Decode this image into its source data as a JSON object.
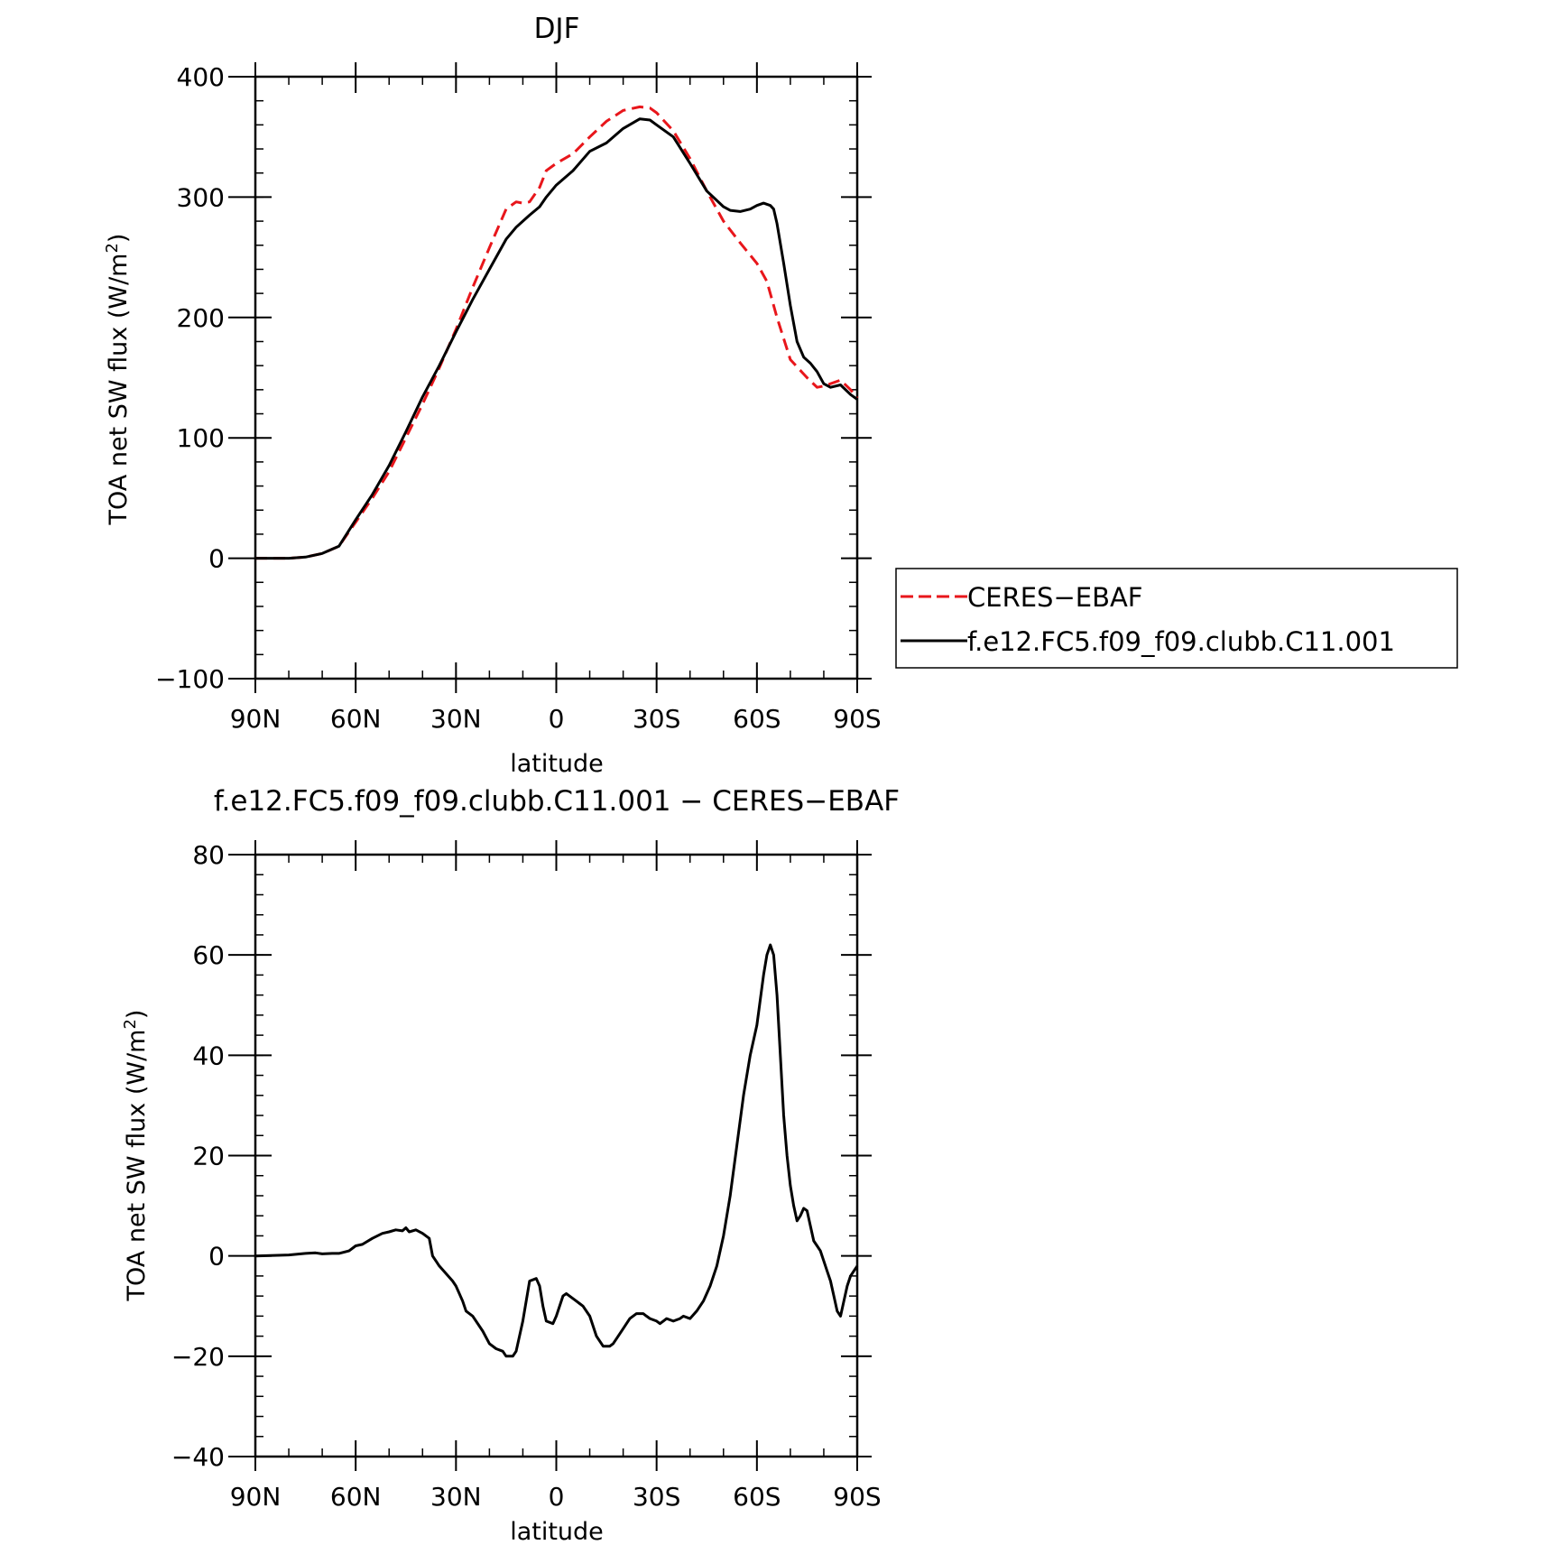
{
  "colors": {
    "obs": "#e8161b",
    "model": "#000000"
  },
  "charts": [
    {
      "title": "DJF",
      "xlabel": "latitude",
      "ylabel": "TOA net SW flux (W/m",
      "ylabel_sup": "2",
      "ylabel_close": ")",
      "xticks": [
        {
          "v": 90,
          "label": "90N"
        },
        {
          "v": 60,
          "label": "60N"
        },
        {
          "v": 30,
          "label": "30N"
        },
        {
          "v": 0,
          "label": "0"
        },
        {
          "v": -30,
          "label": "30S"
        },
        {
          "v": -60,
          "label": "60S"
        },
        {
          "v": -90,
          "label": "90S"
        }
      ],
      "yticks": [
        {
          "v": 400,
          "label": "400"
        },
        {
          "v": 300,
          "label": "300"
        },
        {
          "v": 200,
          "label": "200"
        },
        {
          "v": 100,
          "label": "100"
        },
        {
          "v": 0,
          "label": "0"
        },
        {
          "v": -100,
          "label": "−100"
        }
      ]
    },
    {
      "title": "f.e12.FC5.f09_f09.clubb.C11.001 − CERES−EBAF",
      "xlabel": "latitude",
      "ylabel": "TOA net SW flux (W/m",
      "ylabel_sup": "2",
      "ylabel_close": ")",
      "xticks": [
        {
          "v": 90,
          "label": "90N"
        },
        {
          "v": 60,
          "label": "60N"
        },
        {
          "v": 30,
          "label": "30N"
        },
        {
          "v": 0,
          "label": "0"
        },
        {
          "v": -30,
          "label": "30S"
        },
        {
          "v": -60,
          "label": "60S"
        },
        {
          "v": -90,
          "label": "90S"
        }
      ],
      "yticks": [
        {
          "v": 80,
          "label": "80"
        },
        {
          "v": 60,
          "label": "60"
        },
        {
          "v": 40,
          "label": "40"
        },
        {
          "v": 20,
          "label": "20"
        },
        {
          "v": 0,
          "label": "0"
        },
        {
          "v": -20,
          "label": "−20"
        },
        {
          "v": -40,
          "label": "−40"
        }
      ]
    }
  ],
  "legend": [
    {
      "name": "CERES−EBAF",
      "style": "dashed",
      "color": "#e8161b"
    },
    {
      "name": "f.e12.FC5.f09_f09.clubb.C11.001",
      "style": "solid",
      "color": "#000000"
    }
  ],
  "chart_data": [
    {
      "type": "line",
      "title": "DJF",
      "xlabel": "latitude",
      "ylabel": "TOA net SW flux (W/m2)",
      "xlim": [
        90,
        -90
      ],
      "ylim": [
        -100,
        400
      ],
      "series": [
        {
          "name": "CERES−EBAF",
          "x": [
            90,
            85,
            80,
            75,
            70,
            65,
            60,
            55,
            50,
            45,
            40,
            35,
            30,
            25,
            20,
            15,
            12,
            10,
            8,
            5,
            3,
            0,
            -5,
            -10,
            -15,
            -20,
            -25,
            -28,
            -30,
            -35,
            -40,
            -45,
            -50,
            -55,
            -60,
            -63,
            -66,
            -70,
            -75,
            -78,
            -80,
            -82,
            -85,
            -88,
            -90
          ],
          "y": [
            0,
            0,
            0,
            1,
            4,
            10,
            30,
            50,
            72,
            100,
            128,
            158,
            190,
            225,
            258,
            290,
            296,
            295,
            296,
            308,
            322,
            328,
            336,
            350,
            363,
            372,
            375,
            374,
            370,
            355,
            332,
            305,
            280,
            262,
            245,
            230,
            200,
            165,
            150,
            142,
            143,
            145,
            148,
            140,
            133
          ]
        },
        {
          "name": "f.e12.FC5.f09_f09.clubb.C11.001",
          "x": [
            90,
            85,
            80,
            75,
            70,
            65,
            60,
            55,
            50,
            45,
            40,
            35,
            30,
            25,
            20,
            15,
            12,
            10,
            8,
            5,
            3,
            0,
            -5,
            -10,
            -15,
            -20,
            -25,
            -28,
            -30,
            -35,
            -40,
            -45,
            -50,
            -52,
            -55,
            -58,
            -60,
            -62,
            -64,
            -65,
            -66,
            -68,
            -70,
            -72,
            -74,
            -76,
            -78,
            -80,
            -82,
            -85,
            -88,
            -90
          ],
          "y": [
            0,
            0,
            0,
            1,
            4,
            10,
            32,
            53,
            77,
            105,
            134,
            160,
            188,
            215,
            240,
            265,
            275,
            280,
            285,
            292,
            300,
            310,
            322,
            338,
            345,
            357,
            365,
            364,
            360,
            350,
            328,
            305,
            292,
            289,
            288,
            290,
            293,
            295,
            293,
            290,
            278,
            245,
            210,
            180,
            167,
            162,
            155,
            145,
            142,
            144,
            136,
            132
          ]
        }
      ]
    },
    {
      "type": "line",
      "title": "f.e12.FC5.f09_f09.clubb.C11.001 − CERES−EBAF",
      "xlabel": "latitude",
      "ylabel": "TOA net SW flux (W/m2)",
      "xlim": [
        90,
        -90
      ],
      "ylim": [
        -40,
        80
      ],
      "series": [
        {
          "name": "",
          "x": [
            90,
            80,
            75,
            72,
            70,
            67,
            65,
            62,
            60,
            58,
            55,
            52,
            50,
            48,
            46,
            45,
            44,
            42,
            40,
            38,
            37,
            36,
            35,
            33,
            31,
            30,
            28,
            27,
            25,
            22,
            20,
            18,
            16,
            15,
            13,
            12,
            10,
            8,
            6,
            5,
            4,
            3,
            1,
            0,
            -2,
            -3,
            -5,
            -6,
            -7,
            -8,
            -10,
            -12,
            -14,
            -16,
            -17,
            -18,
            -20,
            -22,
            -24,
            -26,
            -27,
            -28,
            -30,
            -31,
            -32,
            -33,
            -35,
            -37,
            -38,
            -40,
            -42,
            -44,
            -46,
            -48,
            -50,
            -52,
            -54,
            -56,
            -58,
            -60,
            -61,
            -62,
            -63,
            -64,
            -65,
            -66,
            -67,
            -68,
            -69,
            -70,
            -71,
            -72,
            -73,
            -74,
            -75,
            -76,
            -77,
            -78,
            -79,
            -80,
            -81,
            -82,
            -83,
            -84,
            -85,
            -86,
            -87,
            -88,
            -89,
            -90
          ],
          "y": [
            0,
            0.2,
            0.5,
            0.6,
            0.4,
            0.5,
            0.5,
            1,
            2,
            2.3,
            3.5,
            4.5,
            4.8,
            5.2,
            5,
            5.6,
            4.8,
            5.2,
            4.5,
            3.5,
            0,
            -1,
            -2,
            -3.5,
            -5,
            -6,
            -9,
            -11,
            -12,
            -15,
            -17.5,
            -18.5,
            -19,
            -20,
            -20,
            -19,
            -13,
            -5,
            -4.5,
            -6,
            -10,
            -13,
            -13.5,
            -12,
            -8,
            -7.5,
            -8.5,
            -9,
            -9.5,
            -10,
            -12,
            -16,
            -18,
            -18,
            -17.5,
            -16.5,
            -14.5,
            -12.5,
            -11.5,
            -11.5,
            -12,
            -12.5,
            -13,
            -13.5,
            -13,
            -12.5,
            -13,
            -12.5,
            -12,
            -12.5,
            -11,
            -9,
            -6,
            -2,
            4,
            12,
            22,
            32,
            40,
            46,
            51,
            56,
            60,
            62,
            60,
            52,
            40,
            28,
            20,
            14,
            10,
            7,
            8,
            9.5,
            9,
            6,
            3,
            2,
            1,
            -1,
            -3,
            -5,
            -8,
            -11,
            -12,
            -9,
            -6,
            -4,
            -3,
            -2
          ]
        }
      ]
    }
  ]
}
